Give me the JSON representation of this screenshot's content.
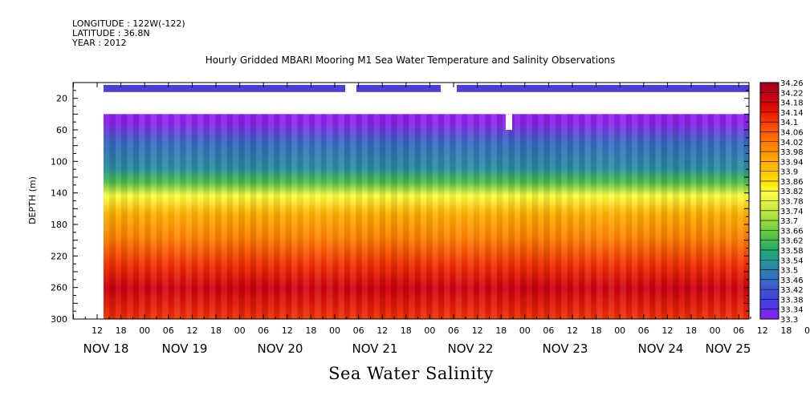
{
  "header": {
    "longitude": "LONGITUDE : 122W(-122)",
    "latitude": "LATITUDE : 36.8N",
    "year": "YEAR : 2012"
  },
  "chart_data": {
    "type": "heatmap",
    "title": "Hourly Gridded MBARI Mooring M1 Sea Water Temperature and Salinity Observations",
    "xlabel": "Sea Water Salinity",
    "ylabel": "DEPTH (m)",
    "ylim": [
      300,
      0
    ],
    "y_ticks": [
      20,
      60,
      100,
      140,
      180,
      220,
      260,
      300
    ],
    "x_hour_ticks": [
      "12",
      "18",
      "00",
      "06",
      "12",
      "18",
      "00",
      "06",
      "12",
      "18",
      "00",
      "06",
      "12",
      "18",
      "00",
      "06",
      "12",
      "18",
      "00",
      "06",
      "12",
      "18",
      "00",
      "06",
      "12",
      "18",
      "00",
      "06",
      "12",
      "18",
      "00",
      "06"
    ],
    "x_date_labels": [
      "NOV 18",
      "NOV 19",
      "NOV 20",
      "NOV 21",
      "NOV 22",
      "NOV 23",
      "NOV 24",
      "NOV 25"
    ],
    "colorbar_levels": [
      "34.26",
      "34.22",
      "34.18",
      "34.14",
      "34.1",
      "34.06",
      "34.02",
      "33.98",
      "33.94",
      "33.9",
      "33.86",
      "33.82",
      "33.78",
      "33.74",
      "33.7",
      "33.66",
      "33.62",
      "33.58",
      "33.54",
      "33.5",
      "33.46",
      "33.42",
      "33.38",
      "33.34",
      "33.3"
    ],
    "colormap": [
      "#a00020",
      "#b80018",
      "#d00010",
      "#e41000",
      "#f43000",
      "#ff5000",
      "#ff6c00",
      "#ff8400",
      "#ff9c00",
      "#ffb400",
      "#ffcc00",
      "#ffe400",
      "#ffff40",
      "#e8f440",
      "#c8e840",
      "#a0dc40",
      "#78d040",
      "#50c048",
      "#30b060",
      "#20a080",
      "#2890a0",
      "#3078b8",
      "#3868c8",
      "#4050d0",
      "#4040e0",
      "#6030e8",
      "#9020f0"
    ],
    "depth_profile": [
      {
        "depth": 12,
        "salinity": 33.31
      },
      {
        "depth": 40,
        "salinity": 33.44
      },
      {
        "depth": 80,
        "salinity": 33.52
      },
      {
        "depth": 100,
        "salinity": 33.62
      },
      {
        "depth": 120,
        "salinity": 33.8
      },
      {
        "depth": 145,
        "salinity": 33.92
      },
      {
        "depth": 180,
        "salinity": 34.0
      },
      {
        "depth": 220,
        "salinity": 34.1
      },
      {
        "depth": 255,
        "salinity": 34.2
      },
      {
        "depth": 300,
        "salinity": 34.12
      }
    ]
  }
}
